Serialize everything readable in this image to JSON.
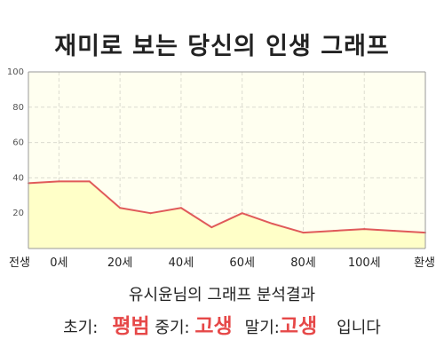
{
  "title": "재미로 보는 당신의 인생 그래프",
  "chart_data": {
    "type": "area",
    "categories": [
      "전생",
      "0세",
      "20세",
      "40세",
      "60세",
      "80세",
      "100세",
      "환생"
    ],
    "x": [
      "전생",
      "0세",
      "10세",
      "20세",
      "30세",
      "40세",
      "50세",
      "60세",
      "70세",
      "80세",
      "90세",
      "100세",
      "110세",
      "환생"
    ],
    "values": [
      37,
      38,
      38,
      23,
      20,
      23,
      12,
      20,
      14,
      9,
      10,
      11,
      10,
      9
    ],
    "yticks": [
      "20",
      "40",
      "60",
      "80",
      "100"
    ],
    "ylim": [
      0,
      100
    ],
    "grid": true
  },
  "summary": "유시윤님의 그래프 분석결과",
  "verdict": {
    "early_label": "초기:",
    "early_value": "평범",
    "mid_label": "중기:",
    "mid_value": "고생",
    "late_label": "말기:",
    "late_value": "고생",
    "suffix": "입니다"
  },
  "colors": {
    "fill": "#ffffc8",
    "plot_bg": "#fffff0",
    "line": "#e05a5a",
    "accent": "#e64848",
    "grid": "#dcdcd0",
    "axis": "#999999"
  }
}
